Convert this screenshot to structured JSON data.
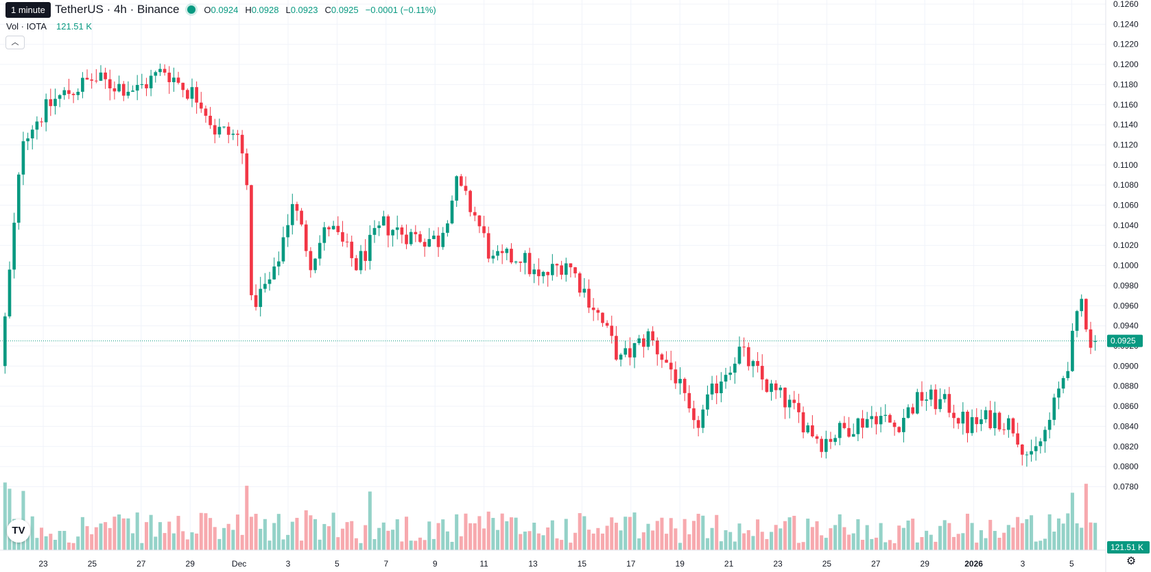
{
  "header": {
    "tooltip": "1 minute",
    "symbol": "TetherUS · 4h · Binance",
    "ohlc": {
      "o_label": "O",
      "o": "0.0924",
      "h_label": "H",
      "h": "0.0928",
      "l_label": "L",
      "l": "0.0923",
      "c_label": "C",
      "c": "0.0925",
      "change": "−0.0001 (−0.11%)"
    },
    "volume_label": "Vol · IOTA",
    "volume_value": "121.51 K",
    "collapse_icon": "chevron-up-icon"
  },
  "price_axis": {
    "ticks": [
      "0.1260",
      "0.1240",
      "0.1220",
      "0.1200",
      "0.1180",
      "0.1160",
      "0.1140",
      "0.1120",
      "0.1100",
      "0.1080",
      "0.1060",
      "0.1040",
      "0.1020",
      "0.1000",
      "0.0980",
      "0.0960",
      "0.0940",
      "0.0920",
      "0.0900",
      "0.0880",
      "0.0860",
      "0.0840",
      "0.0820",
      "0.0800",
      "0.0780"
    ],
    "current_price": "0.0925",
    "volume_badge": "121.51 K"
  },
  "time_axis": {
    "labels": [
      "23",
      "25",
      "27",
      "29",
      "Dec",
      "3",
      "5",
      "7",
      "9",
      "11",
      "13",
      "15",
      "17",
      "19",
      "21",
      "23",
      "25",
      "27",
      "29",
      "2026",
      "3",
      "5"
    ]
  },
  "colors": {
    "up": "#089981",
    "down": "#f23645",
    "up_vol": "#94d2c8",
    "down_vol": "#f7a9ae"
  },
  "chart_data": {
    "type": "candlestick",
    "timeframe": "4h",
    "ylim": [
      0.077,
      0.1265
    ],
    "keyframes": [
      [
        0,
        0.09
      ],
      [
        5,
        0.113
      ],
      [
        12,
        0.1165
      ],
      [
        20,
        0.1185
      ],
      [
        30,
        0.1175
      ],
      [
        36,
        0.1195
      ],
      [
        40,
        0.1178
      ],
      [
        44,
        0.1165
      ],
      [
        47,
        0.1135
      ],
      [
        52,
        0.1128
      ],
      [
        54,
        0.109
      ],
      [
        55,
        0.096
      ],
      [
        60,
        0.099
      ],
      [
        64,
        0.1065
      ],
      [
        68,
        0.1005
      ],
      [
        72,
        0.104
      ],
      [
        78,
        0.1
      ],
      [
        84,
        0.104
      ],
      [
        90,
        0.103
      ],
      [
        96,
        0.1025
      ],
      [
        100,
        0.108
      ],
      [
        104,
        0.105
      ],
      [
        108,
        0.1003
      ],
      [
        114,
        0.101
      ],
      [
        118,
        0.0985
      ],
      [
        124,
        0.1005
      ],
      [
        130,
        0.096
      ],
      [
        136,
        0.0905
      ],
      [
        142,
        0.093
      ],
      [
        148,
        0.089
      ],
      [
        152,
        0.0836
      ],
      [
        158,
        0.089
      ],
      [
        162,
        0.0915
      ],
      [
        168,
        0.088
      ],
      [
        172,
        0.0865
      ],
      [
        176,
        0.0845
      ],
      [
        180,
        0.0825
      ],
      [
        186,
        0.084
      ],
      [
        192,
        0.0852
      ],
      [
        196,
        0.084
      ],
      [
        202,
        0.087
      ],
      [
        208,
        0.086
      ],
      [
        212,
        0.084
      ],
      [
        218,
        0.085
      ],
      [
        222,
        0.084
      ],
      [
        226,
        0.0805
      ],
      [
        230,
        0.0845
      ],
      [
        234,
        0.0905
      ],
      [
        237,
        0.0965
      ],
      [
        239,
        0.0925
      ]
    ],
    "candle_count": 240,
    "last_candle": {
      "open": 0.0924,
      "high": 0.0928,
      "low": 0.0923,
      "close": 0.0925
    }
  }
}
